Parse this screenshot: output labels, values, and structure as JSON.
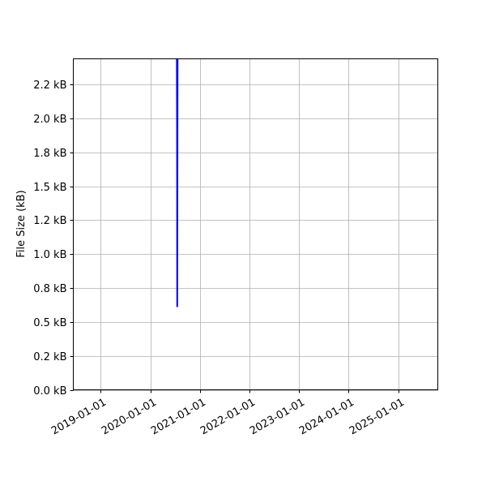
{
  "chart_data": {
    "type": "line",
    "title": "",
    "xlabel": "",
    "ylabel": "File Size (kB)",
    "x_tick_labels": [
      "2019-01-01",
      "2020-01-01",
      "2021-01-01",
      "2022-01-01",
      "2023-01-01",
      "2024-01-01",
      "2025-01-01"
    ],
    "y_ticks": [
      0,
      0.25,
      0.5,
      0.75,
      1.0,
      1.25,
      1.5,
      1.75,
      2.0,
      2.25
    ],
    "y_tick_labels": [
      "0.0 kB",
      "0.2 kB",
      "0.5 kB",
      "0.8 kB",
      "1.0 kB",
      "1.2 kB",
      "1.5 kB",
      "1.8 kB",
      "2.0 kB",
      "2.2 kB"
    ],
    "xlim": [
      "2018-06-12",
      "2025-10-20"
    ],
    "ylim": [
      0,
      2.44
    ],
    "grid": true,
    "series": [
      {
        "color": "#0000ff",
        "x": [
          "2020-07-14",
          "2020-07-16",
          "2020-07-17",
          "2020-07-20"
        ],
        "y": [
          2.6,
          1.9,
          0.61,
          2.6
        ]
      }
    ]
  }
}
